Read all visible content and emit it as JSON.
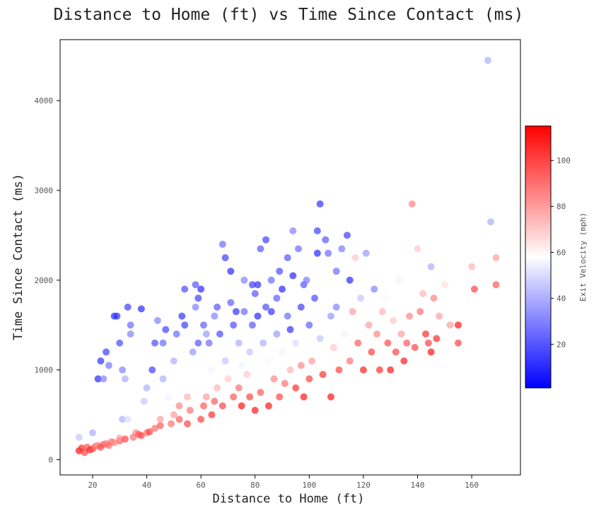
{
  "chart_data": {
    "type": "scatter",
    "title": "Distance to Home (ft) vs Time Since Contact (ms)",
    "xlabel": "Distance to Home (ft)",
    "ylabel": "Time Since Contact (ms)",
    "xlim": [
      8,
      178
    ],
    "ylim": [
      -170,
      4680
    ],
    "xticks": [
      20,
      40,
      60,
      80,
      100,
      120,
      140,
      160
    ],
    "yticks": [
      0,
      1000,
      2000,
      3000,
      4000
    ],
    "grid": false,
    "colorbar": {
      "label": "Exit Velocity (mph)",
      "range": [
        1,
        115
      ],
      "ticks": [
        20,
        40,
        60,
        80,
        100
      ],
      "colormap": "bwr",
      "color_low": "#0000ff",
      "color_mid": "#ffffff",
      "color_high": "#ff0000"
    },
    "marker_opacity": 0.7,
    "points": [
      [
        15,
        100,
        110
      ],
      [
        16,
        130,
        105
      ],
      [
        17,
        80,
        100
      ],
      [
        15,
        250,
        45
      ],
      [
        18,
        140,
        95
      ],
      [
        19,
        110,
        108
      ],
      [
        20,
        120,
        100
      ],
      [
        21,
        150,
        90
      ],
      [
        22,
        160,
        85
      ],
      [
        20,
        300,
        40
      ],
      [
        23,
        140,
        100
      ],
      [
        24,
        170,
        95
      ],
      [
        25,
        180,
        88
      ],
      [
        26,
        160,
        92
      ],
      [
        27,
        200,
        90
      ],
      [
        28,
        190,
        85
      ],
      [
        30,
        210,
        95
      ],
      [
        30,
        240,
        80
      ],
      [
        31,
        450,
        40
      ],
      [
        29,
        1600,
        12
      ],
      [
        30,
        1300,
        18
      ],
      [
        32,
        900,
        40
      ],
      [
        33,
        1700,
        15
      ],
      [
        34,
        1500,
        25
      ],
      [
        34,
        1400,
        30
      ],
      [
        22,
        900,
        10
      ],
      [
        23,
        1100,
        12
      ],
      [
        24,
        900,
        30
      ],
      [
        25,
        1200,
        15
      ],
      [
        26,
        1050,
        28
      ],
      [
        28,
        1600,
        10
      ],
      [
        31,
        1000,
        30
      ],
      [
        33,
        450,
        50
      ],
      [
        32,
        230,
        100
      ],
      [
        35,
        250,
        90
      ],
      [
        36,
        300,
        85
      ],
      [
        37,
        280,
        95
      ],
      [
        38,
        270,
        100
      ],
      [
        39,
        650,
        45
      ],
      [
        38,
        1680,
        10
      ],
      [
        40,
        800,
        40
      ],
      [
        40,
        300,
        90
      ],
      [
        41,
        310,
        100
      ],
      [
        42,
        1000,
        15
      ],
      [
        43,
        1300,
        18
      ],
      [
        43,
        350,
        90
      ],
      [
        44,
        1550,
        30
      ],
      [
        45,
        380,
        95
      ],
      [
        45,
        450,
        80
      ],
      [
        46,
        900,
        40
      ],
      [
        46,
        1300,
        25
      ],
      [
        47,
        1450,
        15
      ],
      [
        48,
        700,
        55
      ],
      [
        49,
        400,
        90
      ],
      [
        50,
        500,
        80
      ],
      [
        50,
        1100,
        40
      ],
      [
        51,
        1400,
        25
      ],
      [
        52,
        450,
        95
      ],
      [
        52,
        600,
        85
      ],
      [
        53,
        1600,
        12
      ],
      [
        54,
        1900,
        18
      ],
      [
        54,
        1500,
        15
      ],
      [
        55,
        400,
        100
      ],
      [
        55,
        700,
        75
      ],
      [
        56,
        550,
        90
      ],
      [
        57,
        1200,
        35
      ],
      [
        58,
        1950,
        20
      ],
      [
        58,
        1700,
        30
      ],
      [
        59,
        1300,
        20
      ],
      [
        59,
        1800,
        15
      ],
      [
        60,
        450,
        100
      ],
      [
        60,
        1900,
        10
      ],
      [
        61,
        600,
        95
      ],
      [
        61,
        1500,
        22
      ],
      [
        62,
        700,
        80
      ],
      [
        62,
        1400,
        35
      ],
      [
        63,
        1300,
        25
      ],
      [
        64,
        500,
        105
      ],
      [
        64,
        1000,
        55
      ],
      [
        65,
        650,
        95
      ],
      [
        65,
        1600,
        30
      ],
      [
        66,
        800,
        75
      ],
      [
        66,
        1700,
        20
      ],
      [
        67,
        1400,
        18
      ],
      [
        68,
        600,
        100
      ],
      [
        68,
        2400,
        25
      ],
      [
        69,
        2250,
        15
      ],
      [
        69,
        1100,
        45
      ],
      [
        70,
        900,
        70
      ],
      [
        71,
        2100,
        10
      ],
      [
        71,
        1750,
        22
      ],
      [
        72,
        700,
        95
      ],
      [
        72,
        1500,
        18
      ],
      [
        73,
        1650,
        12
      ],
      [
        74,
        800,
        90
      ],
      [
        74,
        1300,
        40
      ],
      [
        75,
        600,
        110
      ],
      [
        75,
        1050,
        55
      ],
      [
        76,
        2000,
        30
      ],
      [
        76,
        1650,
        25
      ],
      [
        77,
        950,
        70
      ],
      [
        78,
        700,
        100
      ],
      [
        78,
        1200,
        45
      ],
      [
        79,
        1500,
        20
      ],
      [
        79,
        1950,
        15
      ],
      [
        80,
        550,
        110
      ],
      [
        80,
        1850,
        20
      ],
      [
        81,
        1950,
        12
      ],
      [
        81,
        1600,
        10
      ],
      [
        82,
        750,
        95
      ],
      [
        82,
        2350,
        20
      ],
      [
        83,
        1300,
        40
      ],
      [
        84,
        2450,
        15
      ],
      [
        84,
        1700,
        18
      ],
      [
        85,
        600,
        110
      ],
      [
        85,
        1100,
        60
      ],
      [
        86,
        1650,
        12
      ],
      [
        86,
        2000,
        25
      ],
      [
        87,
        900,
        85
      ],
      [
        88,
        1400,
        35
      ],
      [
        88,
        1800,
        22
      ],
      [
        89,
        700,
        100
      ],
      [
        89,
        2100,
        18
      ],
      [
        90,
        1900,
        10
      ],
      [
        90,
        1200,
        55
      ],
      [
        91,
        850,
        90
      ],
      [
        92,
        1600,
        25
      ],
      [
        92,
        2250,
        20
      ],
      [
        93,
        1000,
        75
      ],
      [
        93,
        1450,
        12
      ],
      [
        94,
        2550,
        30
      ],
      [
        94,
        2050,
        10
      ],
      [
        95,
        800,
        105
      ],
      [
        95,
        1300,
        50
      ],
      [
        96,
        2350,
        25
      ],
      [
        97,
        1700,
        15
      ],
      [
        97,
        1050,
        85
      ],
      [
        98,
        700,
        110
      ],
      [
        98,
        1950,
        20
      ],
      [
        99,
        2000,
        28
      ],
      [
        100,
        1500,
        22
      ],
      [
        100,
        900,
        100
      ],
      [
        101,
        1100,
        80
      ],
      [
        102,
        1800,
        18
      ],
      [
        103,
        2300,
        10
      ],
      [
        103,
        2550,
        15
      ],
      [
        104,
        2850,
        12
      ],
      [
        104,
        1350,
        45
      ],
      [
        105,
        950,
        105
      ],
      [
        106,
        2450,
        20
      ],
      [
        107,
        2300,
        25
      ],
      [
        108,
        700,
        110
      ],
      [
        108,
        1600,
        35
      ],
      [
        109,
        1250,
        70
      ],
      [
        110,
        2100,
        25
      ],
      [
        110,
        1700,
        30
      ],
      [
        111,
        1000,
        100
      ],
      [
        112,
        2350,
        28
      ],
      [
        113,
        1400,
        55
      ],
      [
        114,
        2500,
        15
      ],
      [
        115,
        2000,
        10
      ],
      [
        115,
        1100,
        90
      ],
      [
        116,
        1650,
        80
      ],
      [
        117,
        2250,
        70
      ],
      [
        118,
        1300,
        95
      ],
      [
        119,
        1800,
        45
      ],
      [
        120,
        1000,
        108
      ],
      [
        121,
        2300,
        35
      ],
      [
        122,
        1500,
        80
      ],
      [
        123,
        1200,
        100
      ],
      [
        124,
        1900,
        30
      ],
      [
        125,
        1400,
        85
      ],
      [
        126,
        1000,
        105
      ],
      [
        127,
        1650,
        75
      ],
      [
        128,
        1800,
        60
      ],
      [
        129,
        1300,
        98
      ],
      [
        130,
        1000,
        110
      ],
      [
        131,
        1550,
        70
      ],
      [
        132,
        1200,
        100
      ],
      [
        133,
        2000,
        55
      ],
      [
        134,
        1400,
        80
      ],
      [
        135,
        1100,
        108
      ],
      [
        136,
        1300,
        95
      ],
      [
        137,
        1600,
        85
      ],
      [
        138,
        2850,
        85
      ],
      [
        139,
        1250,
        100
      ],
      [
        140,
        2350,
        70
      ],
      [
        141,
        1650,
        90
      ],
      [
        142,
        1850,
        75
      ],
      [
        143,
        1400,
        105
      ],
      [
        144,
        1300,
        100
      ],
      [
        145,
        2150,
        40
      ],
      [
        145,
        1200,
        110
      ],
      [
        146,
        1800,
        85
      ],
      [
        147,
        1350,
        105
      ],
      [
        148,
        1600,
        80
      ],
      [
        150,
        1950,
        65
      ],
      [
        152,
        1500,
        80
      ],
      [
        155,
        1500,
        110
      ],
      [
        155,
        1300,
        100
      ],
      [
        160,
        2150,
        75
      ],
      [
        161,
        1900,
        100
      ],
      [
        166,
        4450,
        40
      ],
      [
        167,
        2650,
        40
      ],
      [
        169,
        2250,
        80
      ],
      [
        169,
        1950,
        95
      ]
    ]
  }
}
